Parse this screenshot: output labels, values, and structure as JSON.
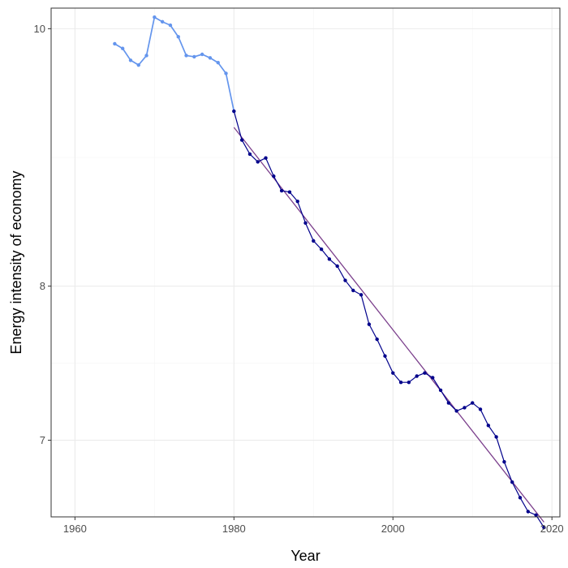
{
  "chart_data": {
    "type": "line",
    "title": "",
    "xlabel": "Year",
    "ylabel": "Energy intensity of economy",
    "xlim": [
      1957,
      2021
    ],
    "ylim_log": [
      6.55,
      10.18
    ],
    "y_scale": "log",
    "x_ticks": [
      1960,
      1980,
      2000,
      2020
    ],
    "y_ticks": [
      7,
      8,
      10
    ],
    "grid": true,
    "colors": {
      "early_series": "#6495ED",
      "later_series": "#00008B",
      "trend_line": "#7B3F8C",
      "panel_border": "#333333",
      "grid_major": "#EBEBEB",
      "grid_minor": "#F5F5F5"
    },
    "series": [
      {
        "x": [
          1965,
          1966,
          1967,
          1968,
          1969,
          1970,
          1971,
          1972,
          1973,
          1974,
          1975,
          1976,
          1977,
          1978,
          1979,
          1980
        ],
        "values": [
          9.87,
          9.83,
          9.73,
          9.69,
          9.77,
          10.1,
          10.06,
          10.03,
          9.93,
          9.77,
          9.76,
          9.78,
          9.75,
          9.71,
          9.62,
          9.31
        ]
      },
      {
        "x": [
          1980,
          1981,
          1982,
          1983,
          1984,
          1985,
          1986,
          1987,
          1988,
          1989,
          1990,
          1991,
          1992,
          1993,
          1994,
          1995,
          1996,
          1997,
          1998,
          1999,
          2000,
          2001,
          2002,
          2003,
          2004,
          2005,
          2006,
          2007,
          2008,
          2009,
          2010,
          2011,
          2012,
          2013,
          2014,
          2015,
          2016,
          2017,
          2018,
          2019
        ],
        "values": [
          9.31,
          9.08,
          8.97,
          8.91,
          8.94,
          8.8,
          8.69,
          8.68,
          8.61,
          8.45,
          8.32,
          8.26,
          8.19,
          8.14,
          8.04,
          7.97,
          7.94,
          7.74,
          7.64,
          7.53,
          7.42,
          7.36,
          7.36,
          7.4,
          7.42,
          7.39,
          7.31,
          7.23,
          7.18,
          7.2,
          7.23,
          7.19,
          7.09,
          7.02,
          6.87,
          6.75,
          6.66,
          6.58,
          6.56,
          6.49
        ]
      }
    ],
    "trend_line": {
      "x": [
        1980,
        2019
      ],
      "values": [
        9.18,
        6.52
      ]
    }
  }
}
